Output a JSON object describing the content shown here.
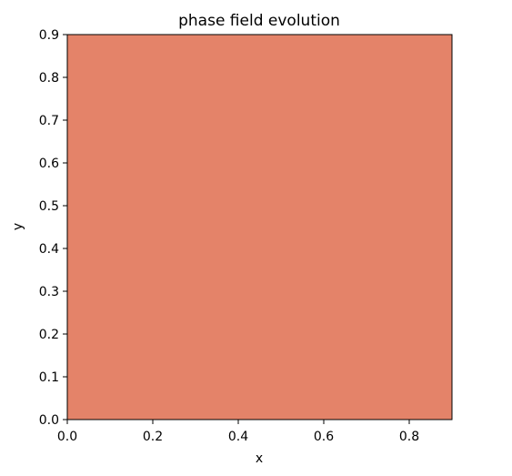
{
  "chart_data": {
    "type": "heatmap",
    "title": "phase field evolution",
    "xlabel": "x",
    "ylabel": "y",
    "xlim": [
      0.0,
      0.9
    ],
    "ylim": [
      0.0,
      0.9
    ],
    "xticks": [
      0.0,
      0.2,
      0.4,
      0.6,
      0.8
    ],
    "xtick_labels": [
      "0.0",
      "0.2",
      "0.4",
      "0.6",
      "0.8"
    ],
    "yticks": [
      0.0,
      0.1,
      0.2,
      0.3,
      0.4,
      0.5,
      0.6,
      0.7,
      0.8,
      0.9
    ],
    "ytick_labels": [
      "0.0",
      "0.1",
      "0.2",
      "0.3",
      "0.4",
      "0.5",
      "0.6",
      "0.7",
      "0.8",
      "0.9"
    ],
    "field": {
      "extent": [
        0.0,
        0.9,
        0.0,
        0.9
      ],
      "fill_color": "#e48369"
    },
    "grid": false
  }
}
